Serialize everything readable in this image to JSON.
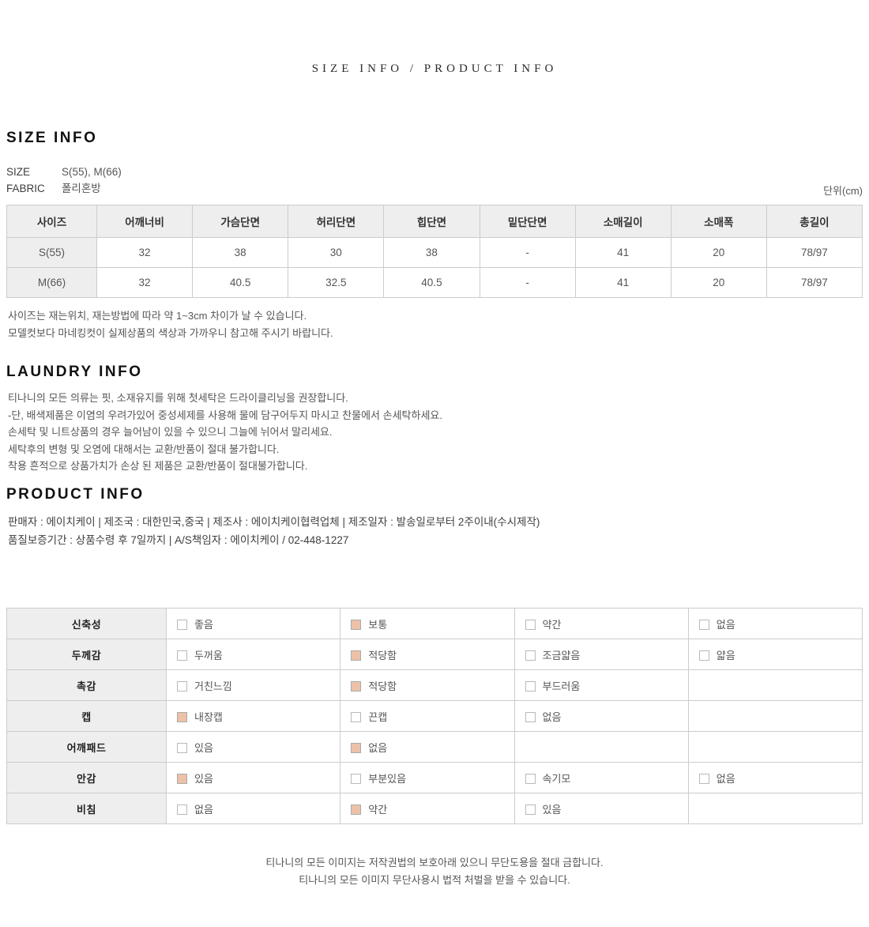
{
  "page": {
    "top_heading": "SIZE INFO / PRODUCT INFO"
  },
  "colors": {
    "checkbox_checked_fill": "#edc1a7",
    "table_header_bg": "#eeeeee",
    "table_border": "#cccccc"
  },
  "size_info": {
    "heading": "SIZE INFO",
    "meta": [
      {
        "label": "SIZE",
        "value": "S(55), M(66)"
      },
      {
        "label": "FABRIC",
        "value": "폴리혼방"
      }
    ],
    "unit_label": "단위(cm)",
    "table": {
      "headers": [
        "사이즈",
        "어깨너비",
        "가슴단면",
        "허리단면",
        "힙단면",
        "밑단단면",
        "소매길이",
        "소매폭",
        "총길이"
      ],
      "rows": [
        {
          "size": "S(55)",
          "values": [
            "32",
            "38",
            "30",
            "38",
            "-",
            "41",
            "20",
            "78/97"
          ]
        },
        {
          "size": "M(66)",
          "values": [
            "32",
            "40.5",
            "32.5",
            "40.5",
            "-",
            "41",
            "20",
            "78/97"
          ]
        }
      ]
    },
    "notes": [
      "사이즈는 재는위치, 재는방법에 따라 약 1~3cm 차이가 날 수 있습니다.",
      "모델컷보다 마네킹컷이 실제상품의 색상과 가까우니 참고해 주시기 바랍니다."
    ]
  },
  "laundry_info": {
    "heading": "LAUNDRY INFO",
    "lines": [
      "티나니의 모든 의류는 핏, 소재유지를 위해 첫세탁은 드라이클리닝을 권장합니다.",
      "-단, 배색제품은 이염의 우려가있어 중성세제를 사용해 물에 담구어두지 마시고 찬물에서 손세탁하세요.",
      "손세탁 및 니트상품의 경우 늘어남이 있을 수 있으니 그늘에 뉘어서 말리세요.",
      "세탁후의 변형 및 오염에 대해서는 교환/반품이 절대 불가합니다.",
      "착용 흔적으로 상품가치가 손상 된 제품은 교환/반품이 절대불가합니다."
    ]
  },
  "product_info": {
    "heading": "PRODUCT INFO",
    "lines": [
      "판매자 : 에이치케이 | 제조국 : 대한민국,중국 | 제조사 : 에이치케이협력업체 | 제조일자 : 발송일로부터 2주이내(수시제작)",
      "품질보증기간 : 상품수령 후 7일까지 | A/S책임자 : 에이치케이 / 02-448-1227"
    ]
  },
  "attributes": {
    "rows": [
      {
        "label": "신축성",
        "options": [
          {
            "text": "좋음",
            "checked": false
          },
          {
            "text": "보통",
            "checked": true
          },
          {
            "text": "약간",
            "checked": false
          },
          {
            "text": "없음",
            "checked": false
          }
        ]
      },
      {
        "label": "두께감",
        "options": [
          {
            "text": "두꺼움",
            "checked": false
          },
          {
            "text": "적당함",
            "checked": true
          },
          {
            "text": "조금얇음",
            "checked": false
          },
          {
            "text": "얇음",
            "checked": false
          }
        ]
      },
      {
        "label": "촉감",
        "options": [
          {
            "text": "거친느낌",
            "checked": false
          },
          {
            "text": "적당함",
            "checked": true
          },
          {
            "text": "부드러움",
            "checked": false
          }
        ]
      },
      {
        "label": "캡",
        "options": [
          {
            "text": "내장캡",
            "checked": true
          },
          {
            "text": "끈캡",
            "checked": false
          },
          {
            "text": "없음",
            "checked": false
          }
        ]
      },
      {
        "label": "어깨패드",
        "options": [
          {
            "text": "있음",
            "checked": false
          },
          {
            "text": "없음",
            "checked": true
          }
        ]
      },
      {
        "label": "안감",
        "options": [
          {
            "text": "있음",
            "checked": true
          },
          {
            "text": "부분있음",
            "checked": false
          },
          {
            "text": "속기모",
            "checked": false
          },
          {
            "text": "없음",
            "checked": false
          }
        ]
      },
      {
        "label": "비침",
        "options": [
          {
            "text": "없음",
            "checked": false
          },
          {
            "text": "약간",
            "checked": true
          },
          {
            "text": "있음",
            "checked": false
          }
        ]
      }
    ]
  },
  "footer": {
    "lines": [
      "티나니의 모든 이미지는 저작권법의 보호아래 있으니 무단도용을 절대 금합니다.",
      "티나니의 모든 이미지 무단사용시 법적 처벌을 받을 수 있습니다."
    ]
  }
}
